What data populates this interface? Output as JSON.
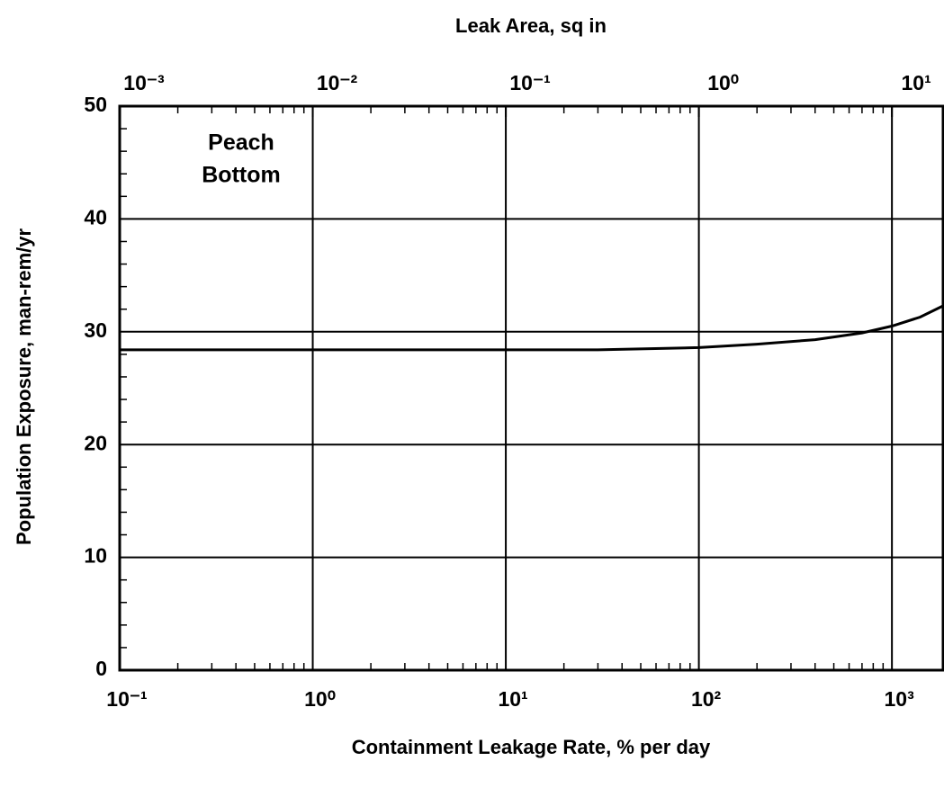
{
  "chart_data": {
    "type": "line",
    "xlabel": "Containment Leakage Rate, % per day",
    "x2label": "Leak Area, sq in",
    "ylabel": "Population Exposure, man-rem/yr",
    "annotation": [
      "Peach",
      "Bottom"
    ],
    "xscale": "log",
    "grid": true,
    "x": [
      0.1,
      1,
      10,
      30,
      100,
      200,
      400,
      700,
      1000,
      1400,
      1841
    ],
    "series": [
      {
        "name": "Peach Bottom",
        "color": "#000000",
        "values": [
          28.4,
          28.4,
          28.4,
          28.4,
          28.6,
          28.9,
          29.3,
          29.9,
          30.5,
          31.3,
          32.3
        ]
      }
    ],
    "xlim": [
      0.1,
      1841
    ],
    "xticks": [
      {
        "value": 0.1,
        "label": "10⁻¹"
      },
      {
        "value": 1,
        "label": "10⁰"
      },
      {
        "value": 10,
        "label": "10¹"
      },
      {
        "value": 100,
        "label": "10²"
      },
      {
        "value": 1000,
        "label": "10³"
      }
    ],
    "xminorticks": [
      0.2,
      0.3,
      0.4,
      0.5,
      0.6,
      0.7,
      0.8,
      0.9,
      2,
      3,
      4,
      5,
      6,
      7,
      8,
      9,
      20,
      30,
      40,
      50,
      60,
      70,
      80,
      90,
      200,
      300,
      400,
      500,
      600,
      700,
      800,
      900
    ],
    "x2lim": [
      0.001,
      18.41
    ],
    "x2ticks": [
      {
        "value": 0.001,
        "label": "10⁻³"
      },
      {
        "value": 0.01,
        "label": "10⁻²"
      },
      {
        "value": 0.1,
        "label": "10⁻¹"
      },
      {
        "value": 1,
        "label": "10⁰"
      },
      {
        "value": 10,
        "label": "10¹"
      }
    ],
    "x2minorticks": [
      0.002,
      0.003,
      0.004,
      0.005,
      0.006,
      0.007,
      0.008,
      0.009,
      0.02,
      0.03,
      0.04,
      0.05,
      0.06,
      0.07,
      0.08,
      0.09,
      0.2,
      0.3,
      0.4,
      0.5,
      0.6,
      0.7,
      0.8,
      0.9,
      2,
      3,
      4,
      5,
      6,
      7,
      8,
      9
    ],
    "ylim": [
      0,
      50
    ],
    "yticks": [
      0,
      10,
      20,
      30,
      40,
      50
    ],
    "yminorticks": [
      2,
      4,
      6,
      8,
      12,
      14,
      16,
      18,
      22,
      24,
      26,
      28,
      32,
      34,
      36,
      38,
      42,
      44,
      46,
      48
    ]
  }
}
